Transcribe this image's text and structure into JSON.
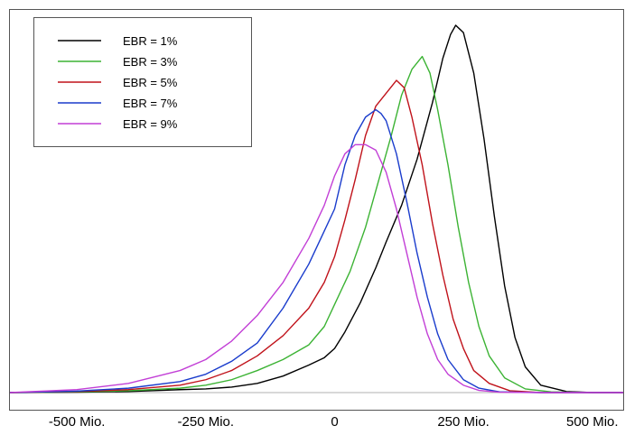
{
  "chart_data": {
    "type": "line",
    "title": "",
    "xlabel": "",
    "ylabel": "",
    "xlim": [
      -630,
      560
    ],
    "ylim": [
      0,
      1.0
    ],
    "x_ticks": [
      {
        "value": -500,
        "label": "-500 Mio."
      },
      {
        "value": -250,
        "label": "-250 Mio."
      },
      {
        "value": 0,
        "label": "0"
      },
      {
        "value": 250,
        "label": "250 Mio."
      },
      {
        "value": 500,
        "label": "500 Mio."
      }
    ],
    "grid": false,
    "legend_position": "top-left",
    "series": [
      {
        "name": "EBR = 1%",
        "color": "#000000",
        "points": [
          [
            -630,
            0.0
          ],
          [
            -500,
            0.001
          ],
          [
            -400,
            0.003
          ],
          [
            -300,
            0.008
          ],
          [
            -250,
            0.01
          ],
          [
            -200,
            0.015
          ],
          [
            -150,
            0.025
          ],
          [
            -100,
            0.045
          ],
          [
            -50,
            0.075
          ],
          [
            -20,
            0.095
          ],
          [
            0,
            0.12
          ],
          [
            20,
            0.165
          ],
          [
            50,
            0.245
          ],
          [
            80,
            0.34
          ],
          [
            100,
            0.41
          ],
          [
            130,
            0.51
          ],
          [
            160,
            0.635
          ],
          [
            190,
            0.79
          ],
          [
            210,
            0.91
          ],
          [
            225,
            0.975
          ],
          [
            235,
            1.0
          ],
          [
            250,
            0.98
          ],
          [
            270,
            0.87
          ],
          [
            290,
            0.69
          ],
          [
            310,
            0.48
          ],
          [
            330,
            0.29
          ],
          [
            350,
            0.15
          ],
          [
            370,
            0.07
          ],
          [
            400,
            0.02
          ],
          [
            450,
            0.003
          ],
          [
            500,
            0.0
          ],
          [
            560,
            0.0
          ]
        ]
      },
      {
        "name": "EBR = 3%",
        "color": "#3cb334",
        "points": [
          [
            -630,
            0.0
          ],
          [
            -500,
            0.002
          ],
          [
            -400,
            0.005
          ],
          [
            -300,
            0.012
          ],
          [
            -250,
            0.02
          ],
          [
            -200,
            0.035
          ],
          [
            -150,
            0.06
          ],
          [
            -100,
            0.09
          ],
          [
            -50,
            0.13
          ],
          [
            -20,
            0.18
          ],
          [
            0,
            0.24
          ],
          [
            30,
            0.33
          ],
          [
            60,
            0.45
          ],
          [
            90,
            0.6
          ],
          [
            110,
            0.7
          ],
          [
            130,
            0.81
          ],
          [
            150,
            0.88
          ],
          [
            170,
            0.915
          ],
          [
            185,
            0.87
          ],
          [
            200,
            0.77
          ],
          [
            220,
            0.62
          ],
          [
            240,
            0.45
          ],
          [
            260,
            0.3
          ],
          [
            280,
            0.18
          ],
          [
            300,
            0.1
          ],
          [
            330,
            0.04
          ],
          [
            370,
            0.01
          ],
          [
            420,
            0.002
          ],
          [
            500,
            0.0
          ],
          [
            560,
            0.0
          ]
        ]
      },
      {
        "name": "EBR = 5%",
        "color": "#c0121a",
        "points": [
          [
            -630,
            0.0
          ],
          [
            -500,
            0.003
          ],
          [
            -400,
            0.008
          ],
          [
            -300,
            0.02
          ],
          [
            -250,
            0.035
          ],
          [
            -200,
            0.06
          ],
          [
            -150,
            0.1
          ],
          [
            -100,
            0.155
          ],
          [
            -50,
            0.23
          ],
          [
            -20,
            0.3
          ],
          [
            0,
            0.37
          ],
          [
            20,
            0.47
          ],
          [
            40,
            0.58
          ],
          [
            60,
            0.7
          ],
          [
            80,
            0.78
          ],
          [
            100,
            0.815
          ],
          [
            120,
            0.85
          ],
          [
            135,
            0.83
          ],
          [
            150,
            0.75
          ],
          [
            170,
            0.62
          ],
          [
            190,
            0.46
          ],
          [
            210,
            0.32
          ],
          [
            230,
            0.2
          ],
          [
            250,
            0.12
          ],
          [
            270,
            0.06
          ],
          [
            300,
            0.025
          ],
          [
            340,
            0.005
          ],
          [
            400,
            0.0
          ],
          [
            560,
            0.0
          ]
        ]
      },
      {
        "name": "EBR = 7%",
        "color": "#1a3ccc",
        "points": [
          [
            -630,
            0.0
          ],
          [
            -500,
            0.004
          ],
          [
            -400,
            0.012
          ],
          [
            -300,
            0.03
          ],
          [
            -250,
            0.05
          ],
          [
            -200,
            0.085
          ],
          [
            -150,
            0.135
          ],
          [
            -100,
            0.23
          ],
          [
            -50,
            0.35
          ],
          [
            -20,
            0.44
          ],
          [
            0,
            0.5
          ],
          [
            20,
            0.62
          ],
          [
            40,
            0.7
          ],
          [
            60,
            0.75
          ],
          [
            80,
            0.77
          ],
          [
            90,
            0.76
          ],
          [
            100,
            0.74
          ],
          [
            120,
            0.65
          ],
          [
            140,
            0.52
          ],
          [
            160,
            0.38
          ],
          [
            180,
            0.26
          ],
          [
            200,
            0.16
          ],
          [
            220,
            0.09
          ],
          [
            250,
            0.035
          ],
          [
            280,
            0.012
          ],
          [
            320,
            0.002
          ],
          [
            400,
            0.0
          ],
          [
            560,
            0.0
          ]
        ]
      },
      {
        "name": "EBR = 9%",
        "color": "#c23fd6",
        "points": [
          [
            -630,
            0.0
          ],
          [
            -500,
            0.008
          ],
          [
            -400,
            0.025
          ],
          [
            -300,
            0.06
          ],
          [
            -250,
            0.09
          ],
          [
            -200,
            0.14
          ],
          [
            -150,
            0.21
          ],
          [
            -100,
            0.3
          ],
          [
            -50,
            0.42
          ],
          [
            -20,
            0.51
          ],
          [
            0,
            0.59
          ],
          [
            20,
            0.65
          ],
          [
            40,
            0.675
          ],
          [
            60,
            0.675
          ],
          [
            80,
            0.66
          ],
          [
            100,
            0.6
          ],
          [
            120,
            0.5
          ],
          [
            140,
            0.38
          ],
          [
            160,
            0.26
          ],
          [
            180,
            0.16
          ],
          [
            200,
            0.09
          ],
          [
            220,
            0.05
          ],
          [
            250,
            0.02
          ],
          [
            280,
            0.006
          ],
          [
            320,
            0.001
          ],
          [
            400,
            0.0
          ],
          [
            560,
            0.0
          ]
        ]
      }
    ]
  }
}
